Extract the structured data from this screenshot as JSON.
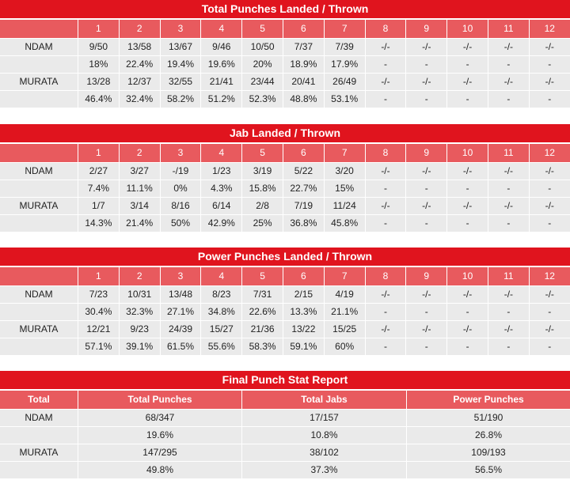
{
  "rounds": [
    "1",
    "2",
    "3",
    "4",
    "5",
    "6",
    "7",
    "8",
    "9",
    "10",
    "11",
    "12"
  ],
  "tables": [
    {
      "title": "Total Punches Landed / Thrown",
      "rows": [
        {
          "name": "NDAM",
          "cells": [
            "9/50",
            "13/58",
            "13/67",
            "9/46",
            "10/50",
            "7/37",
            "7/39",
            "-/-",
            "-/-",
            "-/-",
            "-/-",
            "-/-"
          ]
        },
        {
          "name": "",
          "cells": [
            "18%",
            "22.4%",
            "19.4%",
            "19.6%",
            "20%",
            "18.9%",
            "17.9%",
            "-",
            "-",
            "-",
            "-",
            "-"
          ]
        },
        {
          "name": "MURATA",
          "cells": [
            "13/28",
            "12/37",
            "32/55",
            "21/41",
            "23/44",
            "20/41",
            "26/49",
            "-/-",
            "-/-",
            "-/-",
            "-/-",
            "-/-"
          ]
        },
        {
          "name": "",
          "cells": [
            "46.4%",
            "32.4%",
            "58.2%",
            "51.2%",
            "52.3%",
            "48.8%",
            "53.1%",
            "-",
            "-",
            "-",
            "-",
            "-"
          ]
        }
      ]
    },
    {
      "title": "Jab Landed / Thrown",
      "rows": [
        {
          "name": "NDAM",
          "cells": [
            "2/27",
            "3/27",
            "-/19",
            "1/23",
            "3/19",
            "5/22",
            "3/20",
            "-/-",
            "-/-",
            "-/-",
            "-/-",
            "-/-"
          ]
        },
        {
          "name": "",
          "cells": [
            "7.4%",
            "11.1%",
            "0%",
            "4.3%",
            "15.8%",
            "22.7%",
            "15%",
            "-",
            "-",
            "-",
            "-",
            "-"
          ]
        },
        {
          "name": "MURATA",
          "cells": [
            "1/7",
            "3/14",
            "8/16",
            "6/14",
            "2/8",
            "7/19",
            "11/24",
            "-/-",
            "-/-",
            "-/-",
            "-/-",
            "-/-"
          ]
        },
        {
          "name": "",
          "cells": [
            "14.3%",
            "21.4%",
            "50%",
            "42.9%",
            "25%",
            "36.8%",
            "45.8%",
            "-",
            "-",
            "-",
            "-",
            "-"
          ]
        }
      ]
    },
    {
      "title": "Power Punches Landed / Thrown",
      "rows": [
        {
          "name": "NDAM",
          "cells": [
            "7/23",
            "10/31",
            "13/48",
            "8/23",
            "7/31",
            "2/15",
            "4/19",
            "-/-",
            "-/-",
            "-/-",
            "-/-",
            "-/-"
          ]
        },
        {
          "name": "",
          "cells": [
            "30.4%",
            "32.3%",
            "27.1%",
            "34.8%",
            "22.6%",
            "13.3%",
            "21.1%",
            "-",
            "-",
            "-",
            "-",
            "-"
          ]
        },
        {
          "name": "MURATA",
          "cells": [
            "12/21",
            "9/23",
            "24/39",
            "15/27",
            "21/36",
            "13/22",
            "15/25",
            "-/-",
            "-/-",
            "-/-",
            "-/-",
            "-/-"
          ]
        },
        {
          "name": "",
          "cells": [
            "57.1%",
            "39.1%",
            "61.5%",
            "55.6%",
            "58.3%",
            "59.1%",
            "60%",
            "-",
            "-",
            "-",
            "-",
            "-"
          ]
        }
      ]
    }
  ],
  "final": {
    "title": "Final Punch Stat Report",
    "headers": [
      "Total",
      "Total Punches",
      "Total Jabs",
      "Power Punches"
    ],
    "rows": [
      {
        "name": "NDAM",
        "cells": [
          "68/347",
          "17/157",
          "51/190"
        ]
      },
      {
        "name": "",
        "cells": [
          "19.6%",
          "10.8%",
          "26.8%"
        ]
      },
      {
        "name": "MURATA",
        "cells": [
          "147/295",
          "38/102",
          "109/193"
        ]
      },
      {
        "name": "",
        "cells": [
          "49.8%",
          "37.3%",
          "56.5%"
        ]
      }
    ]
  }
}
